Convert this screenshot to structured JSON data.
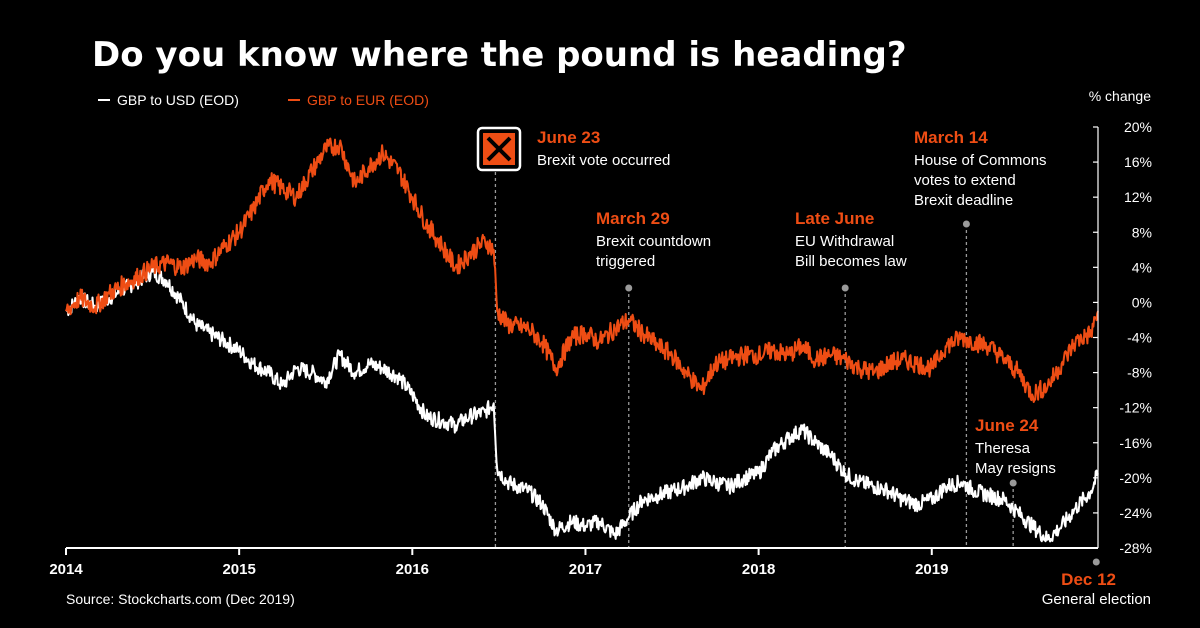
{
  "title": "Do you know where the pound is heading?",
  "source": "Source: Stockcharts.com (Dec 2019)",
  "colors": {
    "usd": "#ffffff",
    "eur": "#ee4d14",
    "background": "#000000",
    "guide": "#9a9a9a"
  },
  "chart_data": {
    "type": "line",
    "ylabel": "% change",
    "ylim": [
      -28,
      20
    ],
    "yticks": [
      20,
      16,
      12,
      8,
      4,
      0,
      -4,
      -8,
      -12,
      -16,
      -20,
      -24,
      -28
    ],
    "ytick_labels": [
      "20%",
      "16%",
      "12%",
      "8%",
      "4%",
      "0%",
      "-4%",
      "-8%",
      "-12%",
      "-16%",
      "-20%",
      "-24%",
      "-28%"
    ],
    "xlim": [
      2014.0,
      2019.96
    ],
    "xticks": [
      "2014",
      "2015",
      "2016",
      "2017",
      "2018",
      "2019"
    ],
    "legend_position": "top-left",
    "series": [
      {
        "name": "GBP to USD (EOD)",
        "key": "usd",
        "points": [
          [
            2014.0,
            -1
          ],
          [
            2014.08,
            0.5
          ],
          [
            2014.17,
            -0.5
          ],
          [
            2014.25,
            0.5
          ],
          [
            2014.33,
            1.5
          ],
          [
            2014.42,
            2.5
          ],
          [
            2014.5,
            3.5
          ],
          [
            2014.58,
            2.5
          ],
          [
            2014.67,
            0
          ],
          [
            2014.75,
            -2.5
          ],
          [
            2014.83,
            -3.5
          ],
          [
            2014.92,
            -4.5
          ],
          [
            2015.0,
            -5.5
          ],
          [
            2015.08,
            -7
          ],
          [
            2015.17,
            -8
          ],
          [
            2015.25,
            -9.5
          ],
          [
            2015.33,
            -7.5
          ],
          [
            2015.42,
            -8
          ],
          [
            2015.5,
            -9
          ],
          [
            2015.58,
            -6
          ],
          [
            2015.67,
            -8
          ],
          [
            2015.75,
            -7
          ],
          [
            2015.83,
            -7.5
          ],
          [
            2015.92,
            -8.5
          ],
          [
            2016.0,
            -10.5
          ],
          [
            2016.08,
            -13
          ],
          [
            2016.17,
            -13.5
          ],
          [
            2016.25,
            -14
          ],
          [
            2016.33,
            -13
          ],
          [
            2016.42,
            -12.5
          ],
          [
            2016.47,
            -11.5
          ],
          [
            2016.49,
            -19
          ],
          [
            2016.55,
            -20.5
          ],
          [
            2016.67,
            -21.5
          ],
          [
            2016.75,
            -23
          ],
          [
            2016.83,
            -26
          ],
          [
            2016.92,
            -25
          ],
          [
            2017.0,
            -25.5
          ],
          [
            2017.08,
            -25
          ],
          [
            2017.17,
            -26.5
          ],
          [
            2017.25,
            -24.5
          ],
          [
            2017.33,
            -22.5
          ],
          [
            2017.42,
            -22
          ],
          [
            2017.5,
            -21.5
          ],
          [
            2017.58,
            -21
          ],
          [
            2017.67,
            -20
          ],
          [
            2017.75,
            -20.5
          ],
          [
            2017.83,
            -21
          ],
          [
            2017.92,
            -20
          ],
          [
            2018.0,
            -19.5
          ],
          [
            2018.08,
            -17
          ],
          [
            2018.17,
            -15.5
          ],
          [
            2018.25,
            -14.5
          ],
          [
            2018.33,
            -16
          ],
          [
            2018.42,
            -17.5
          ],
          [
            2018.5,
            -19.5
          ],
          [
            2018.58,
            -20.5
          ],
          [
            2018.67,
            -21
          ],
          [
            2018.75,
            -21.5
          ],
          [
            2018.83,
            -22.5
          ],
          [
            2018.92,
            -23
          ],
          [
            2019.0,
            -22.5
          ],
          [
            2019.08,
            -21
          ],
          [
            2019.17,
            -20.5
          ],
          [
            2019.25,
            -21.5
          ],
          [
            2019.33,
            -22
          ],
          [
            2019.42,
            -22.5
          ],
          [
            2019.5,
            -24
          ],
          [
            2019.58,
            -25.5
          ],
          [
            2019.67,
            -27
          ],
          [
            2019.75,
            -25.5
          ],
          [
            2019.83,
            -23.5
          ],
          [
            2019.92,
            -21.5
          ],
          [
            2019.96,
            -19.5
          ]
        ]
      },
      {
        "name": "GBP to EUR (EOD)",
        "key": "eur",
        "points": [
          [
            2014.0,
            -1
          ],
          [
            2014.08,
            0.5
          ],
          [
            2014.17,
            -0.5
          ],
          [
            2014.25,
            1
          ],
          [
            2014.33,
            2
          ],
          [
            2014.42,
            3
          ],
          [
            2014.5,
            4
          ],
          [
            2014.58,
            4.5
          ],
          [
            2014.67,
            4
          ],
          [
            2014.75,
            5
          ],
          [
            2014.83,
            4.5
          ],
          [
            2014.92,
            6.5
          ],
          [
            2015.0,
            8
          ],
          [
            2015.08,
            10.5
          ],
          [
            2015.17,
            14
          ],
          [
            2015.25,
            13
          ],
          [
            2015.33,
            12
          ],
          [
            2015.42,
            15
          ],
          [
            2015.5,
            17.5
          ],
          [
            2015.58,
            18
          ],
          [
            2015.67,
            13.5
          ],
          [
            2015.75,
            15.5
          ],
          [
            2015.83,
            17
          ],
          [
            2015.92,
            15
          ],
          [
            2016.0,
            12
          ],
          [
            2016.08,
            9
          ],
          [
            2016.17,
            6.5
          ],
          [
            2016.25,
            4
          ],
          [
            2016.33,
            5.5
          ],
          [
            2016.42,
            7
          ],
          [
            2016.47,
            6
          ],
          [
            2016.49,
            -1
          ],
          [
            2016.55,
            -2.5
          ],
          [
            2016.67,
            -3
          ],
          [
            2016.75,
            -4.5
          ],
          [
            2016.83,
            -7.5
          ],
          [
            2016.92,
            -4
          ],
          [
            2017.0,
            -3.5
          ],
          [
            2017.08,
            -4.5
          ],
          [
            2017.17,
            -3
          ],
          [
            2017.25,
            -2
          ],
          [
            2017.33,
            -3.5
          ],
          [
            2017.42,
            -5
          ],
          [
            2017.5,
            -6
          ],
          [
            2017.58,
            -8
          ],
          [
            2017.67,
            -10
          ],
          [
            2017.75,
            -7
          ],
          [
            2017.83,
            -6.5
          ],
          [
            2017.92,
            -6
          ],
          [
            2018.0,
            -6
          ],
          [
            2018.08,
            -5.5
          ],
          [
            2018.17,
            -6
          ],
          [
            2018.25,
            -5
          ],
          [
            2018.33,
            -6.5
          ],
          [
            2018.42,
            -6
          ],
          [
            2018.5,
            -6.5
          ],
          [
            2018.58,
            -7.5
          ],
          [
            2018.67,
            -8
          ],
          [
            2018.75,
            -7
          ],
          [
            2018.83,
            -6.5
          ],
          [
            2018.92,
            -7
          ],
          [
            2019.0,
            -7.5
          ],
          [
            2019.08,
            -5
          ],
          [
            2019.17,
            -4
          ],
          [
            2019.25,
            -4.5
          ],
          [
            2019.33,
            -5
          ],
          [
            2019.42,
            -6.5
          ],
          [
            2019.5,
            -8
          ],
          [
            2019.58,
            -10.5
          ],
          [
            2019.67,
            -9.5
          ],
          [
            2019.75,
            -7
          ],
          [
            2019.83,
            -4.5
          ],
          [
            2019.92,
            -3.5
          ],
          [
            2019.96,
            -1
          ]
        ]
      }
    ],
    "annotations": [
      {
        "title": "June 23",
        "lines": [
          "Brexit vote occurred"
        ],
        "x": 2016.48,
        "icon": "ballot-x-icon"
      },
      {
        "title": "March 29",
        "lines": [
          "Brexit countdown",
          "triggered"
        ],
        "x": 2017.25
      },
      {
        "title": "Late June",
        "lines": [
          "EU Withdrawal",
          "Bill becomes law"
        ],
        "x": 2018.5
      },
      {
        "title": "March 14",
        "lines": [
          "House of Commons",
          "votes to extend",
          "Brexit deadline"
        ],
        "x": 2019.2
      },
      {
        "title": "June 24",
        "lines": [
          "Theresa",
          "May resigns"
        ],
        "x": 2019.47
      },
      {
        "title": "Dec 12",
        "lines": [
          "General election"
        ],
        "x": 2019.95
      }
    ]
  }
}
